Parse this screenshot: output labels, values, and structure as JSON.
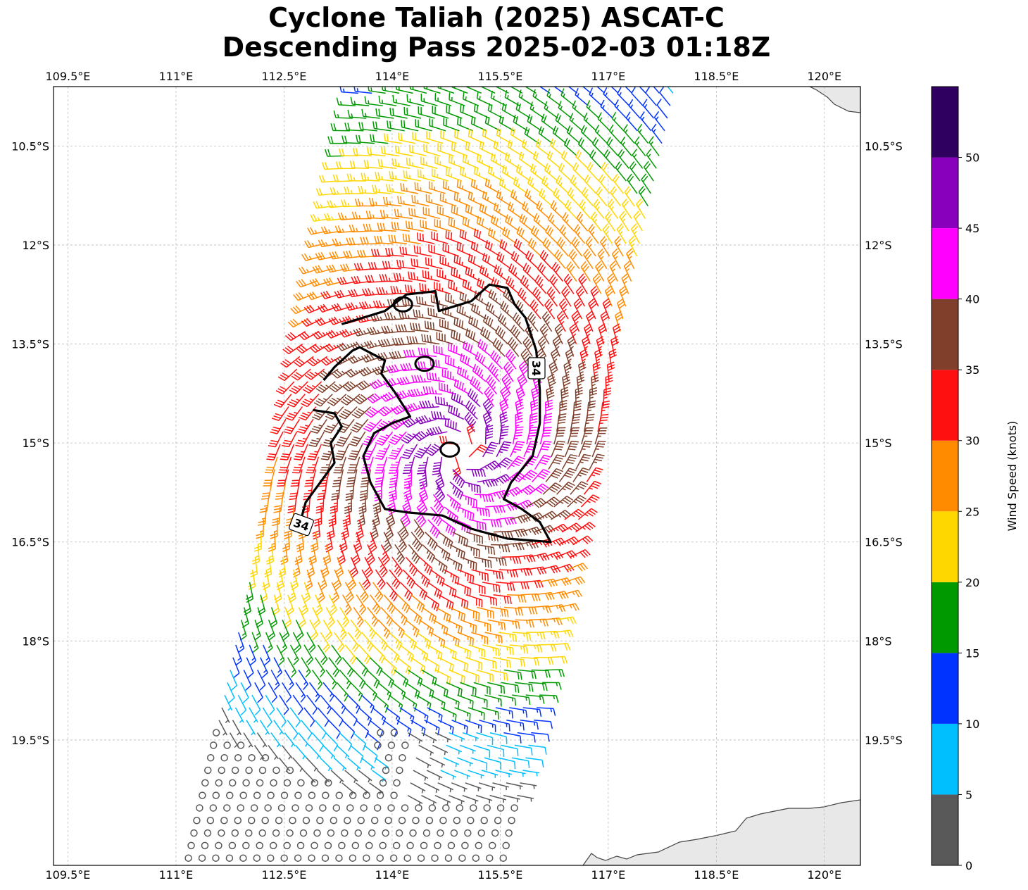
{
  "title": {
    "line1": "Cyclone Taliah (2025) ASCAT-C",
    "line2": "Descending Pass 2025-02-03 01:18Z"
  },
  "map": {
    "lon_range": [
      109.3,
      120.5
    ],
    "lat_range": [
      -21.4,
      -9.6
    ],
    "lon_ticks": [
      {
        "value": 109.5,
        "label": "109.5°E"
      },
      {
        "value": 111,
        "label": "111°E"
      },
      {
        "value": 112.5,
        "label": "112.5°E"
      },
      {
        "value": 114,
        "label": "114°E"
      },
      {
        "value": 115.5,
        "label": "115.5°E"
      },
      {
        "value": 117,
        "label": "117°E"
      },
      {
        "value": 118.5,
        "label": "118.5°E"
      },
      {
        "value": 120,
        "label": "120°E"
      }
    ],
    "lat_ticks": [
      {
        "value": -10.5,
        "label": "10.5°S"
      },
      {
        "value": -12,
        "label": "12°S"
      },
      {
        "value": -13.5,
        "label": "13.5°S"
      },
      {
        "value": -15,
        "label": "15°S"
      },
      {
        "value": -16.5,
        "label": "16.5°S"
      },
      {
        "value": -18,
        "label": "18°S"
      },
      {
        "value": -19.5,
        "label": "19.5°S"
      }
    ],
    "gridlines": true,
    "land_color": "#e8e8e8",
    "storm_center": {
      "lon": 114.95,
      "lat": -15.15
    },
    "swath_center_lon_north": 115.8,
    "swath_center_lon_south": 113.4,
    "swath_half_width_deg": 2.25,
    "contour_label": "34",
    "contour_34kt": [
      [
        113.3,
        -13.2
      ],
      [
        113.9,
        -13.0
      ],
      [
        114.2,
        -12.75
      ],
      [
        114.6,
        -12.7
      ],
      [
        114.65,
        -13.0
      ],
      [
        115.1,
        -12.85
      ],
      [
        115.35,
        -12.6
      ],
      [
        115.6,
        -12.65
      ],
      [
        115.7,
        -12.9
      ],
      [
        115.85,
        -13.1
      ],
      [
        116.0,
        -13.6
      ],
      [
        116.05,
        -14.2
      ],
      [
        116.05,
        -14.7
      ],
      [
        115.95,
        -15.2
      ],
      [
        115.65,
        -15.6
      ],
      [
        115.55,
        -15.85
      ],
      [
        115.8,
        -16.0
      ],
      [
        116.05,
        -16.2
      ],
      [
        116.2,
        -16.5
      ],
      [
        115.6,
        -16.45
      ],
      [
        115.1,
        -16.3
      ],
      [
        114.7,
        -16.1
      ],
      [
        114.2,
        -16.05
      ],
      [
        113.9,
        -16.0
      ],
      [
        113.7,
        -15.6
      ],
      [
        113.6,
        -15.2
      ],
      [
        113.75,
        -14.85
      ],
      [
        114.0,
        -14.7
      ],
      [
        114.25,
        -14.6
      ],
      [
        114.05,
        -14.25
      ],
      [
        113.85,
        -13.95
      ],
      [
        113.9,
        -13.75
      ],
      [
        113.55,
        -13.55
      ],
      [
        113.45,
        -13.6
      ],
      [
        113.2,
        -13.85
      ],
      [
        113.05,
        -14.05
      ]
    ],
    "contour_34kt_west": [
      [
        112.9,
        -14.5
      ],
      [
        113.2,
        -14.55
      ],
      [
        113.3,
        -14.75
      ],
      [
        113.15,
        -15.0
      ],
      [
        113.2,
        -15.3
      ],
      [
        113.0,
        -15.6
      ],
      [
        112.8,
        -15.9
      ],
      [
        112.75,
        -16.1
      ]
    ]
  },
  "colorbar": {
    "label": "Wind Speed (knots)",
    "levels": [
      0,
      5,
      10,
      15,
      20,
      25,
      30,
      35,
      40,
      45,
      50,
      55
    ],
    "tick_labels": [
      "0",
      "5",
      "10",
      "15",
      "20",
      "25",
      "30",
      "35",
      "40",
      "45",
      "50"
    ],
    "colors": [
      "#595959",
      "#00bfff",
      "#0033ff",
      "#009900",
      "#ffd700",
      "#ff8c00",
      "#ff1010",
      "#7f3f2a",
      "#ff00ff",
      "#8800bb",
      "#300060"
    ]
  }
}
